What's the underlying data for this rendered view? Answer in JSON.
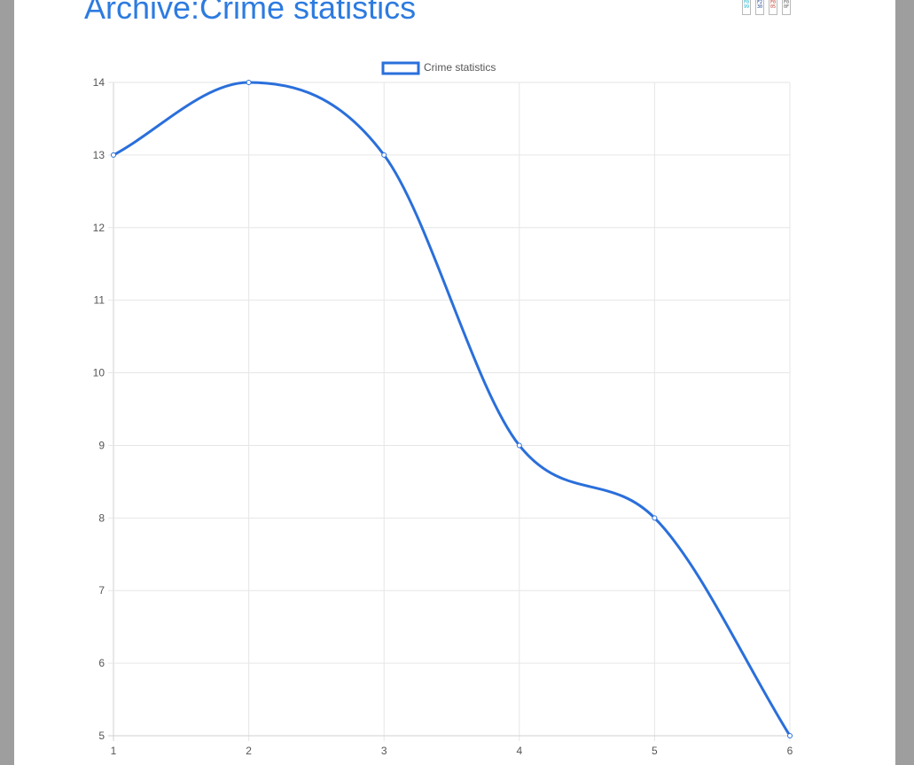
{
  "page": {
    "title": "Archive:Crime statistics"
  },
  "badges": [
    {
      "text": "F0 99",
      "color": "#19b3c9"
    },
    {
      "text": "F2 30",
      "color": "#1a3f8a"
    },
    {
      "text": "F0 05",
      "color": "#c0392b"
    },
    {
      "text": "F0 0F",
      "color": "#555555"
    }
  ],
  "chart_data": {
    "type": "line",
    "x": [
      1,
      2,
      3,
      4,
      5,
      6
    ],
    "series": [
      {
        "name": "Crime statistics",
        "values": [
          13,
          14,
          13,
          9,
          8,
          5
        ],
        "color": "#2a6fdb"
      }
    ],
    "xlim": [
      1,
      6
    ],
    "ylim": [
      5,
      14
    ],
    "x_ticks": [
      "1",
      "2",
      "3",
      "4",
      "5",
      "6"
    ],
    "y_ticks": [
      "5",
      "6",
      "7",
      "8",
      "9",
      "10",
      "11",
      "12",
      "13",
      "14"
    ],
    "grid": true,
    "smooth": true,
    "legend_position": "top-center"
  }
}
